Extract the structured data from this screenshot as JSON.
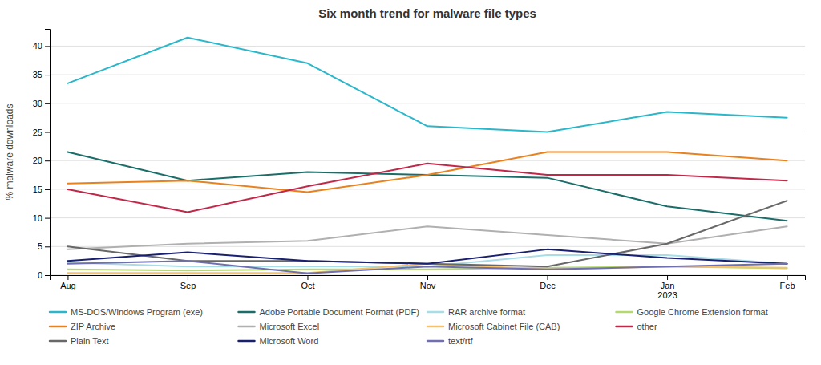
{
  "chart_data": {
    "type": "line",
    "title": "Six month trend for malware file types",
    "y_label": "% malware downloads",
    "categories": [
      "Aug",
      "Sep",
      "Oct",
      "Nov",
      "Dec",
      "Jan\n2023",
      "Feb"
    ],
    "ylim": [
      0,
      43
    ],
    "yticks": [
      0,
      5,
      10,
      15,
      20,
      25,
      30,
      35,
      40
    ],
    "grid": true,
    "legend": "bottom",
    "series": [
      {
        "name": "MS-DOS/Windows Program (exe)",
        "color": "#2ab7ca",
        "values": [
          33.5,
          41.5,
          37.0,
          26.0,
          25.0,
          28.5,
          27.5
        ]
      },
      {
        "name": "Adobe Portable Document Format (PDF)",
        "color": "#1a6e6a",
        "values": [
          21.5,
          16.5,
          18.0,
          17.5,
          17.0,
          12.0,
          9.5
        ]
      },
      {
        "name": "RAR archive format",
        "color": "#a8dde8",
        "values": [
          2.2,
          1.5,
          1.5,
          1.5,
          3.5,
          3.5,
          2.0
        ]
      },
      {
        "name": "Google Chrome Extension format",
        "color": "#b5d96e",
        "values": [
          1.0,
          0.8,
          1.0,
          1.0,
          1.3,
          1.5,
          1.2
        ]
      },
      {
        "name": "ZIP Archive",
        "color": "#e8821e",
        "values": [
          16.0,
          16.5,
          14.5,
          17.5,
          21.5,
          21.5,
          20.0
        ]
      },
      {
        "name": "Microsoft Excel",
        "color": "#b0b0b0",
        "values": [
          4.5,
          5.5,
          6.0,
          8.5,
          7.0,
          5.5,
          8.5
        ]
      },
      {
        "name": "Microsoft Cabinet File (CAB)",
        "color": "#f5c26b",
        "values": [
          0.4,
          0.4,
          0.4,
          2.0,
          1.0,
          1.5,
          1.3
        ]
      },
      {
        "name": "other",
        "color": "#c0284a",
        "values": [
          15.0,
          11.0,
          15.5,
          19.5,
          17.5,
          17.5,
          16.5
        ]
      },
      {
        "name": "Plain Text",
        "color": "#686868",
        "values": [
          5.0,
          2.5,
          2.5,
          2.0,
          1.5,
          5.5,
          13.0
        ]
      },
      {
        "name": "Microsoft Word",
        "color": "#1a2070",
        "values": [
          2.5,
          4.0,
          2.5,
          2.0,
          4.5,
          3.0,
          2.0
        ]
      },
      {
        "name": "text/rtf",
        "color": "#7070b0",
        "values": [
          2.0,
          2.5,
          0.3,
          1.5,
          1.0,
          1.5,
          2.0
        ]
      }
    ]
  }
}
